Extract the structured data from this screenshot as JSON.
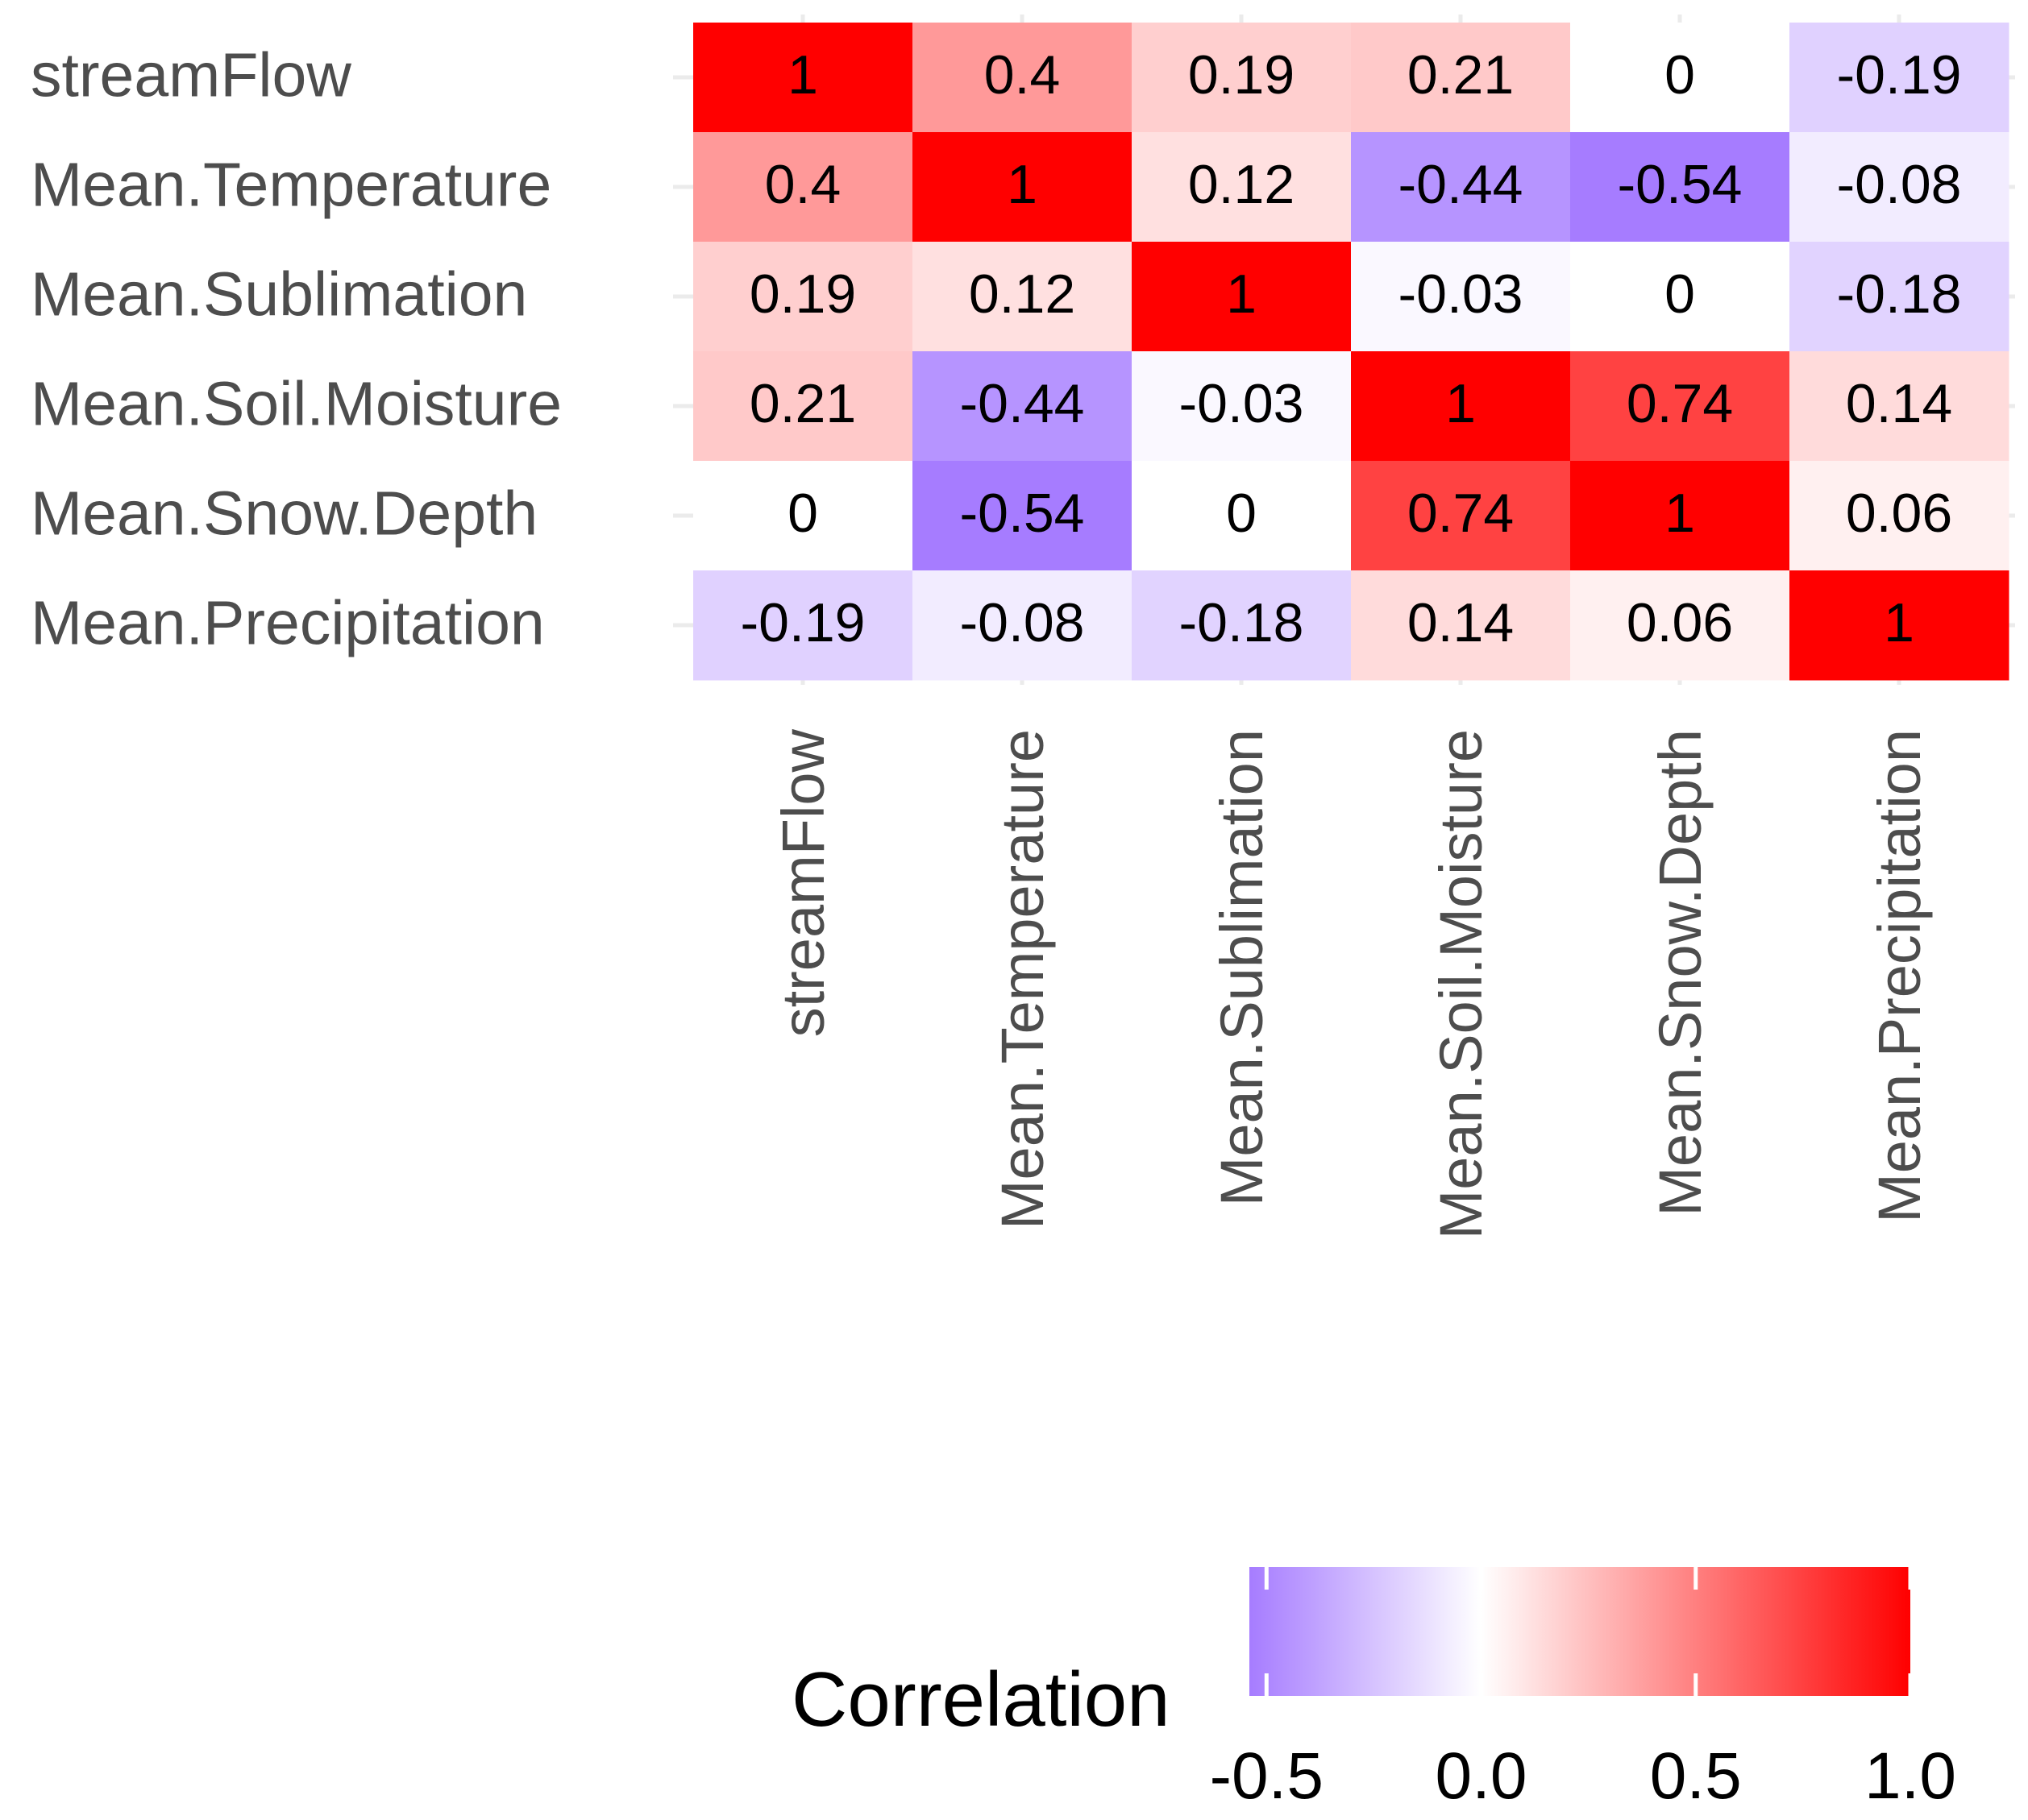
{
  "chart_data": {
    "type": "heatmap",
    "title": "",
    "xlabel": "",
    "ylabel": "",
    "variables": [
      "streamFlow",
      "Mean.Temperature",
      "Mean.Sublimation",
      "Mean.Soil.Moisture",
      "Mean.Snow.Depth",
      "Mean.Precipitation"
    ],
    "matrix": [
      [
        1,
        0.4,
        0.19,
        0.21,
        0,
        -0.19
      ],
      [
        0.4,
        1,
        0.12,
        -0.44,
        -0.54,
        -0.08
      ],
      [
        0.19,
        0.12,
        1,
        -0.03,
        0,
        -0.18
      ],
      [
        0.21,
        -0.44,
        -0.03,
        1,
        0.74,
        0.14
      ],
      [
        0,
        -0.54,
        0,
        0.74,
        1,
        0.06
      ],
      [
        -0.19,
        -0.08,
        -0.18,
        0.14,
        0.06,
        1
      ]
    ],
    "cell_labels": [
      [
        "1",
        "0.4",
        "0.19",
        "0.21",
        "0",
        "-0.19"
      ],
      [
        "0.4",
        "1",
        "0.12",
        "-0.44",
        "-0.54",
        "-0.08"
      ],
      [
        "0.19",
        "0.12",
        "1",
        "-0.03",
        "0",
        "-0.18"
      ],
      [
        "0.21",
        "-0.44",
        "-0.03",
        "1",
        "0.74",
        "0.14"
      ],
      [
        "0",
        "-0.54",
        "0",
        "0.74",
        "1",
        "0.06"
      ],
      [
        "-0.19",
        "-0.08",
        "-0.18",
        "0.14",
        "0.06",
        "1"
      ]
    ],
    "legend": {
      "title": "Correlation",
      "position": "bottom",
      "range": [
        -0.54,
        1
      ],
      "ticks": [
        -0.5,
        0.0,
        0.5,
        1.0
      ],
      "tick_labels": [
        "-0.5",
        "0.0",
        "0.5",
        "1.0"
      ]
    },
    "colors": {
      "low": "#a67cff",
      "mid": "#ffffff",
      "high": "#ff0000",
      "gridline": "#ebebeb",
      "axis_text": "#4d4d4d",
      "cell_text": "#000000"
    }
  }
}
